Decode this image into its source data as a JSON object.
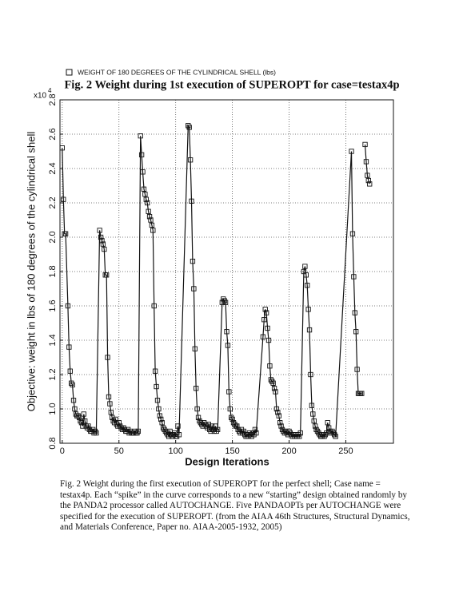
{
  "chart_data": {
    "type": "line",
    "legend_label": "WEIGHT OF 180 DEGREES OF THE CYLINDRICAL SHELL (lbs)",
    "title": "Fig. 2 Weight during 1st execution of SUPEROPT for case=testax4p",
    "y_multiplier": "x10",
    "y_multiplier_exponent": "4",
    "ylabel": "Objective: weight in lbs of 180 degrees of the cylindrical shell",
    "xlabel": "Design Iterations",
    "xlim": [
      -2,
      292
    ],
    "ylim": [
      0.8,
      2.8
    ],
    "xticks": [
      0,
      50,
      100,
      150,
      200,
      250
    ],
    "yticks": [
      0.8,
      {
        "value": 1,
        "label": "1.0"
      },
      1.2,
      1.4,
      1.6,
      1.8,
      {
        "value": 2,
        "label": "2.0"
      },
      2.2,
      2.4,
      2.6,
      2.8
    ],
    "grid": true,
    "marker": "square",
    "series": [
      {
        "name": "WEIGHT OF 180 DEGREES OF THE CYLINDRICAL SHELL (lbs)",
        "color": "#111111",
        "x": [
          0,
          1,
          2,
          3,
          5,
          6,
          7,
          8,
          9,
          10,
          11,
          12,
          13,
          14,
          15,
          16,
          17,
          18,
          19,
          20,
          21,
          22,
          23,
          24,
          25,
          26,
          27,
          28,
          29,
          30,
          33,
          34,
          35,
          36,
          37,
          38,
          39,
          40,
          41,
          42,
          43,
          44,
          45,
          46,
          47,
          48,
          49,
          50,
          51,
          52,
          53,
          54,
          55,
          56,
          57,
          58,
          59,
          60,
          61,
          62,
          63,
          64,
          65,
          66,
          67,
          69,
          70,
          71,
          72,
          73,
          74,
          75,
          76,
          77,
          78,
          79,
          80,
          81,
          82,
          83,
          84,
          85,
          86,
          87,
          88,
          89,
          90,
          91,
          92,
          93,
          94,
          95,
          96,
          97,
          98,
          99,
          100,
          101,
          102,
          103,
          111,
          112,
          113,
          114,
          115,
          116,
          117,
          118,
          119,
          120,
          121,
          122,
          123,
          124,
          125,
          126,
          127,
          128,
          129,
          130,
          131,
          132,
          133,
          134,
          135,
          136,
          137,
          141,
          142,
          143,
          144,
          145,
          146,
          147,
          148,
          149,
          150,
          151,
          152,
          153,
          154,
          155,
          156,
          157,
          158,
          159,
          160,
          161,
          162,
          163,
          164,
          165,
          166,
          167,
          168,
          169,
          170,
          171,
          177,
          178,
          179,
          180,
          181,
          182,
          183,
          184,
          185,
          186,
          187,
          188,
          189,
          190,
          191,
          192,
          193,
          194,
          195,
          196,
          197,
          198,
          199,
          200,
          201,
          202,
          203,
          204,
          205,
          206,
          207,
          208,
          209,
          210,
          213,
          214,
          215,
          216,
          217,
          218,
          219,
          220,
          221,
          222,
          223,
          224,
          225,
          226,
          227,
          228,
          229,
          230,
          231,
          232,
          233,
          234,
          235,
          236,
          237,
          238,
          239,
          240,
          241,
          255,
          256,
          257,
          258,
          259,
          260,
          261,
          262,
          263,
          264,
          265,
          267,
          268,
          269,
          270,
          271
        ],
        "values": [
          2.52,
          2.22,
          2.02,
          2.02,
          1.6,
          1.36,
          1.22,
          1.15,
          1.14,
          1.05,
          1.0,
          0.97,
          0.96,
          0.96,
          0.95,
          0.93,
          0.92,
          0.9,
          0.97,
          0.93,
          0.9,
          0.89,
          0.9,
          0.88,
          0.87,
          0.87,
          0.88,
          0.86,
          0.87,
          0.86,
          2.04,
          2.0,
          1.98,
          1.96,
          1.93,
          1.78,
          1.78,
          1.3,
          1.07,
          1.03,
          0.98,
          0.95,
          0.93,
          0.92,
          0.94,
          0.91,
          0.9,
          0.92,
          0.9,
          0.89,
          0.88,
          0.89,
          0.88,
          0.87,
          0.87,
          0.88,
          0.86,
          0.87,
          0.86,
          0.86,
          0.86,
          0.87,
          0.86,
          0.86,
          0.87,
          2.59,
          2.48,
          2.38,
          2.28,
          2.25,
          2.22,
          2.2,
          2.15,
          2.12,
          2.1,
          2.07,
          2.04,
          1.6,
          1.22,
          1.13,
          1.05,
          1.0,
          0.96,
          0.94,
          0.92,
          0.89,
          0.88,
          0.87,
          0.86,
          0.85,
          0.84,
          0.87,
          0.85,
          0.84,
          0.85,
          0.86,
          0.84,
          0.84,
          0.9,
          0.85,
          2.65,
          2.64,
          2.45,
          2.21,
          1.86,
          1.7,
          1.35,
          1.12,
          1.0,
          0.95,
          0.93,
          0.92,
          0.91,
          0.9,
          0.92,
          0.91,
          0.9,
          0.89,
          0.91,
          0.88,
          0.87,
          0.9,
          0.88,
          0.87,
          0.9,
          0.87,
          0.88,
          1.62,
          1.64,
          1.63,
          1.62,
          1.45,
          1.37,
          1.1,
          1.0,
          0.95,
          0.94,
          0.92,
          0.91,
          0.9,
          0.9,
          0.88,
          0.87,
          0.86,
          0.88,
          0.86,
          0.87,
          0.85,
          0.84,
          0.85,
          0.84,
          0.86,
          0.85,
          0.84,
          0.86,
          0.85,
          0.88,
          0.86,
          1.42,
          1.52,
          1.58,
          1.56,
          1.47,
          1.4,
          1.25,
          1.17,
          1.16,
          1.15,
          1.12,
          1.1,
          1.0,
          0.98,
          0.96,
          0.92,
          0.9,
          0.88,
          0.87,
          0.86,
          0.87,
          0.86,
          0.85,
          0.87,
          0.86,
          0.85,
          0.84,
          0.85,
          0.84,
          0.85,
          0.84,
          0.85,
          0.84,
          0.86,
          1.8,
          1.83,
          1.78,
          1.72,
          1.58,
          1.46,
          1.2,
          1.02,
          0.97,
          0.93,
          0.9,
          0.88,
          0.87,
          0.86,
          0.85,
          0.84,
          0.84,
          0.85,
          0.84,
          0.85,
          0.86,
          0.92,
          0.89,
          0.87,
          0.86,
          0.87,
          0.86,
          0.85,
          0.84,
          2.5,
          2.02,
          1.77,
          1.56,
          1.45,
          1.23,
          1.09,
          1.09,
          1.09,
          1.09,
          null,
          2.54,
          2.44,
          2.36,
          2.33,
          2.31
        ]
      }
    ]
  },
  "caption": "Fig. 2 Weight during the first execution of SUPEROPT for the perfect shell; Case name = testax4p. Each “spike” in the curve corresponds to a new “starting” design obtained randomly by the PANDA2 processor called AUTOCHANGE. Five PANDAOPTs per AUTOCHANGE were specified for the execution of SUPEROPT. (from the AIAA 46th Structures, Structural Dynamics, and Materials Conference, Paper no. AIAA-2005-1932, 2005)"
}
